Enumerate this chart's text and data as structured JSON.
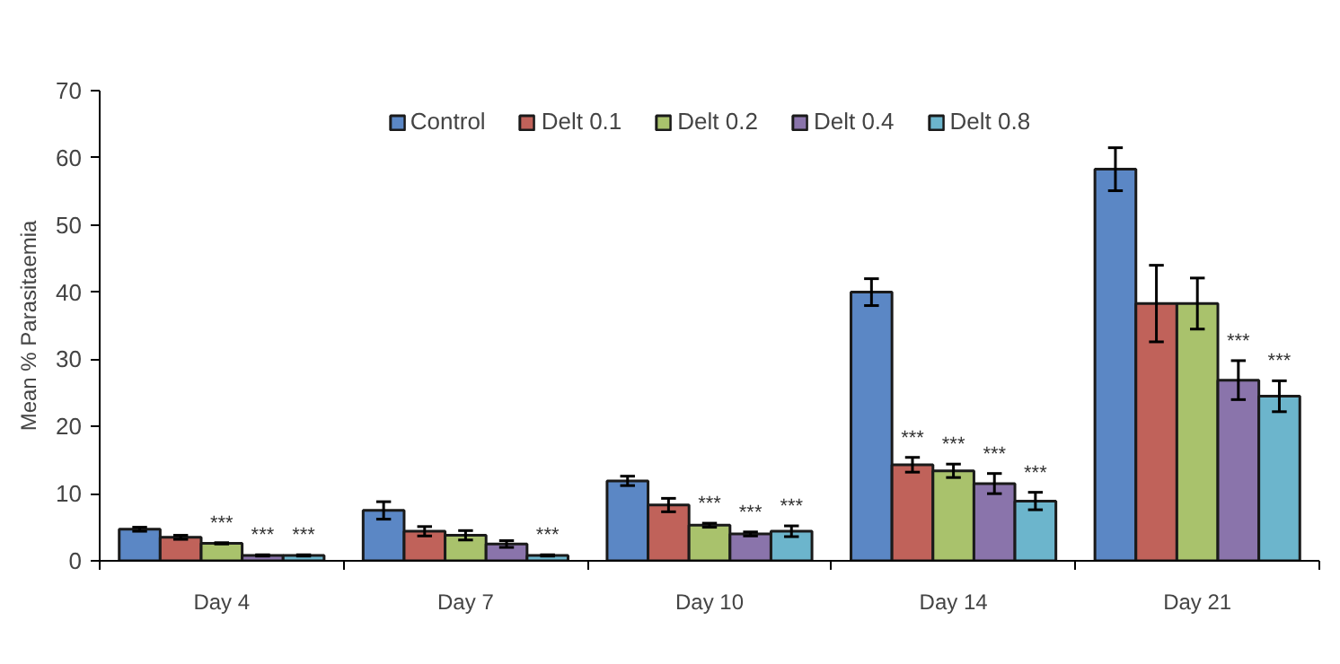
{
  "chart_data": {
    "type": "bar",
    "ylabel": "Mean % Parasitaemia",
    "categories": [
      "Day 4",
      "Day 7",
      "Day 10",
      "Day 14",
      "Day 21"
    ],
    "ylim": [
      0,
      70
    ],
    "yticks": [
      0,
      10,
      20,
      30,
      40,
      50,
      60,
      70
    ],
    "grid": false,
    "legend": "top",
    "series": [
      {
        "name": "Control",
        "color": "#5b87c5",
        "values": [
          4.7,
          7.5,
          11.9,
          40,
          58.3
        ],
        "errors": [
          0.3,
          1.3,
          0.7,
          2,
          3.2
        ]
      },
      {
        "name": "Delt 0.1",
        "color": "#c0625a",
        "values": [
          3.5,
          4.4,
          8.3,
          14.3,
          38.3
        ],
        "errors": [
          0.3,
          0.7,
          1.0,
          1.1,
          5.7
        ],
        "value_labels": [
          null,
          null,
          null,
          "***",
          null
        ]
      },
      {
        "name": "Delt 0.2",
        "color": "#a9c26c",
        "values": [
          2.6,
          3.8,
          5.3,
          13.4,
          38.3
        ],
        "errors": [
          0.1,
          0.7,
          0.3,
          1.0,
          3.8
        ],
        "value_labels": [
          "***",
          null,
          "***",
          "***",
          null
        ]
      },
      {
        "name": "Delt 0.4",
        "color": "#8a74ab",
        "values": [
          0.8,
          2.5,
          4.0,
          11.5,
          26.9
        ],
        "errors": [
          0.1,
          0.5,
          0.3,
          1.5,
          2.9
        ],
        "value_labels": [
          "***",
          null,
          "***",
          "***",
          "***"
        ]
      },
      {
        "name": "Delt 0.8",
        "color": "#6cb5cc",
        "values": [
          0.8,
          0.8,
          4.4,
          8.9,
          24.5
        ],
        "errors": [
          0.1,
          0.1,
          0.8,
          1.3,
          2.3
        ],
        "value_labels": [
          "***",
          "***",
          "***",
          "***",
          "***"
        ]
      }
    ]
  }
}
